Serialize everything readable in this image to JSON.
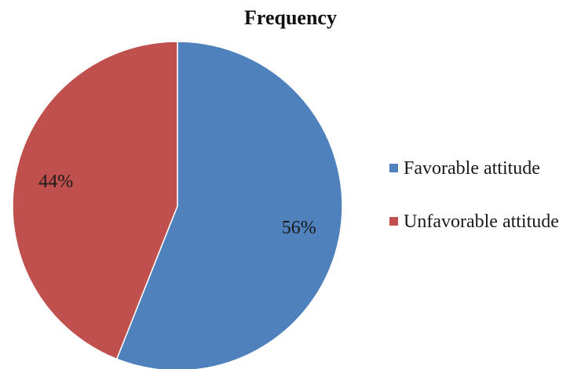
{
  "chart_data": {
    "type": "pie",
    "title": "Frequency",
    "legend_position": "right",
    "slices": [
      {
        "label": "Favorable attitude",
        "value": 56,
        "value_label": "56%",
        "color": "#4F81BD"
      },
      {
        "label": "Unfavorable attitude",
        "value": 44,
        "value_label": "44%",
        "color": "#C0504D"
      }
    ]
  }
}
